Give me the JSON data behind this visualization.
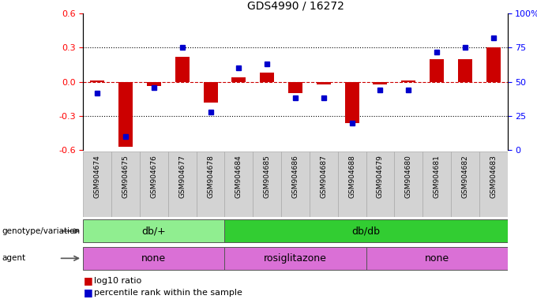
{
  "title": "GDS4990 / 16272",
  "samples": [
    "GSM904674",
    "GSM904675",
    "GSM904676",
    "GSM904677",
    "GSM904678",
    "GSM904684",
    "GSM904685",
    "GSM904686",
    "GSM904687",
    "GSM904688",
    "GSM904679",
    "GSM904680",
    "GSM904681",
    "GSM904682",
    "GSM904683"
  ],
  "log10_ratio": [
    0.01,
    -0.57,
    -0.04,
    0.22,
    -0.18,
    0.04,
    0.08,
    -0.1,
    -0.02,
    -0.36,
    -0.02,
    0.01,
    0.2,
    0.2,
    0.3
  ],
  "percentile": [
    42,
    10,
    46,
    75,
    28,
    60,
    63,
    38,
    38,
    20,
    44,
    44,
    72,
    75,
    82
  ],
  "genotype_groups": [
    {
      "label": "db/+",
      "start": 0,
      "end": 4,
      "color": "#90ee90"
    },
    {
      "label": "db/db",
      "start": 5,
      "end": 14,
      "color": "#32cd32"
    }
  ],
  "agent_groups": [
    {
      "label": "none",
      "start": 0,
      "end": 4,
      "color": "#da70d6"
    },
    {
      "label": "rosiglitazone",
      "start": 5,
      "end": 9,
      "color": "#da70d6"
    },
    {
      "label": "none",
      "start": 10,
      "end": 14,
      "color": "#da70d6"
    }
  ],
  "ylim_left": [
    -0.6,
    0.6
  ],
  "ylim_right": [
    0,
    100
  ],
  "yticks_left": [
    -0.6,
    -0.3,
    0.0,
    0.3,
    0.6
  ],
  "yticks_right": [
    0,
    25,
    50,
    75,
    100
  ],
  "ytick_labels_right": [
    "0",
    "25",
    "50",
    "75",
    "100%"
  ],
  "bar_color": "#cc0000",
  "dot_color": "#0000cc",
  "hline_color": "#cc0000",
  "dotted_color": "#000000",
  "background_color": "#ffffff",
  "genotype_label": "genotype/variation",
  "agent_label": "agent",
  "legend1": "log10 ratio",
  "legend2": "percentile rank within the sample"
}
